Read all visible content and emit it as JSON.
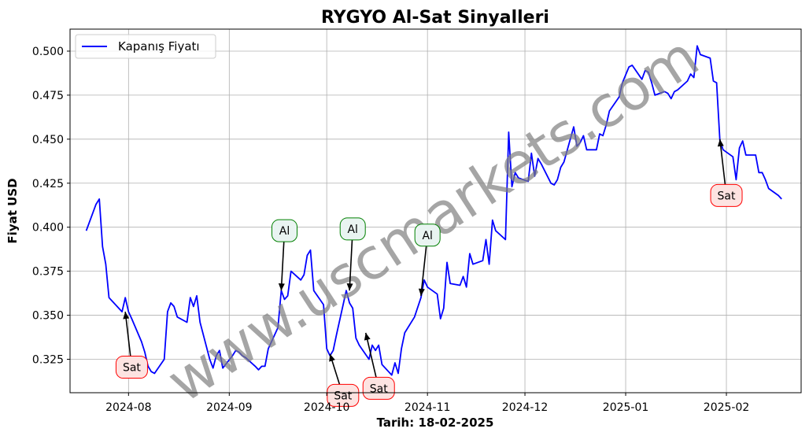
{
  "chart_data": {
    "type": "line",
    "title": "RYGYO Al-Sat Sinyalleri",
    "xlabel": "Tarih: 18-02-2025",
    "ylabel": "Fiyat USD",
    "xlim": [
      "2024-07-14",
      "2025-02-24"
    ],
    "ylim": [
      0.306,
      0.5125
    ],
    "grid": true,
    "legend_position": "top-left",
    "x_ticks": [
      "2024-08-01",
      "2024-09-01",
      "2024-10-01",
      "2024-11-01",
      "2024-12-01",
      "2025-01-01",
      "2025-02-01"
    ],
    "x_tick_labels": [
      "2024-08",
      "2024-09",
      "2024-10",
      "2024-11",
      "2024-12",
      "2025-01",
      "2025-02"
    ],
    "y_ticks": [
      0.325,
      0.35,
      0.375,
      0.4,
      0.425,
      0.45,
      0.475,
      0.5
    ],
    "y_tick_labels": [
      "0.325",
      "0.350",
      "0.375",
      "0.400",
      "0.425",
      "0.450",
      "0.475",
      "0.500"
    ],
    "series": [
      {
        "name": "Kapanış Fiyatı",
        "color": "#0000ff",
        "x": [
          "2024-07-19",
          "2024-07-22",
          "2024-07-23",
          "2024-07-24",
          "2024-07-25",
          "2024-07-26",
          "2024-07-29",
          "2024-07-30",
          "2024-07-31",
          "2024-08-01",
          "2024-08-02",
          "2024-08-05",
          "2024-08-06",
          "2024-08-07",
          "2024-08-08",
          "2024-08-09",
          "2024-08-12",
          "2024-08-13",
          "2024-08-14",
          "2024-08-15",
          "2024-08-16",
          "2024-08-19",
          "2024-08-20",
          "2024-08-21",
          "2024-08-22",
          "2024-08-23",
          "2024-08-26",
          "2024-08-27",
          "2024-08-28",
          "2024-08-29",
          "2024-08-30",
          "2024-09-02",
          "2024-09-03",
          "2024-09-04",
          "2024-09-05",
          "2024-09-06",
          "2024-09-09",
          "2024-09-10",
          "2024-09-11",
          "2024-09-12",
          "2024-09-13",
          "2024-09-16",
          "2024-09-17",
          "2024-09-18",
          "2024-09-19",
          "2024-09-20",
          "2024-09-23",
          "2024-09-24",
          "2024-09-25",
          "2024-09-26",
          "2024-09-27",
          "2024-09-30",
          "2024-10-01",
          "2024-10-02",
          "2024-10-03",
          "2024-10-04",
          "2024-10-07",
          "2024-10-08",
          "2024-10-09",
          "2024-10-10",
          "2024-10-11",
          "2024-10-14",
          "2024-10-15",
          "2024-10-16",
          "2024-10-17",
          "2024-10-18",
          "2024-10-21",
          "2024-10-22",
          "2024-10-23",
          "2024-10-24",
          "2024-10-25",
          "2024-10-28",
          "2024-10-30",
          "2024-10-31",
          "2024-11-01",
          "2024-11-04",
          "2024-11-05",
          "2024-11-06",
          "2024-11-07",
          "2024-11-08",
          "2024-11-11",
          "2024-11-12",
          "2024-11-13",
          "2024-11-14",
          "2024-11-15",
          "2024-11-18",
          "2024-11-19",
          "2024-11-20",
          "2024-11-21",
          "2024-11-22",
          "2024-11-25",
          "2024-11-26",
          "2024-11-27",
          "2024-11-28",
          "2024-11-29",
          "2024-12-02",
          "2024-12-03",
          "2024-12-04",
          "2024-12-05",
          "2024-12-06",
          "2024-12-09",
          "2024-12-10",
          "2024-12-11",
          "2024-12-12",
          "2024-12-13",
          "2024-12-16",
          "2024-12-17",
          "2024-12-18",
          "2024-12-19",
          "2024-12-20",
          "2024-12-23",
          "2024-12-24",
          "2024-12-25",
          "2024-12-26",
          "2024-12-27",
          "2024-12-30",
          "2024-12-31",
          "2025-01-02",
          "2025-01-03",
          "2025-01-06",
          "2025-01-07",
          "2025-01-08",
          "2025-01-09",
          "2025-01-10",
          "2025-01-13",
          "2025-01-14",
          "2025-01-15",
          "2025-01-16",
          "2025-01-17",
          "2025-01-20",
          "2025-01-21",
          "2025-01-22",
          "2025-01-23",
          "2025-01-24",
          "2025-01-27",
          "2025-01-28",
          "2025-01-29",
          "2025-01-30",
          "2025-01-31",
          "2025-02-03",
          "2025-02-04",
          "2025-02-05",
          "2025-02-06",
          "2025-02-07",
          "2025-02-10",
          "2025-02-11",
          "2025-02-12",
          "2025-02-13",
          "2025-02-14",
          "2025-02-17",
          "2025-02-18"
        ],
        "values": [
          0.398,
          0.413,
          0.416,
          0.389,
          0.379,
          0.36,
          0.354,
          0.352,
          0.36,
          0.352,
          0.348,
          0.335,
          0.329,
          0.321,
          0.318,
          0.317,
          0.325,
          0.352,
          0.357,
          0.355,
          0.349,
          0.346,
          0.36,
          0.355,
          0.361,
          0.346,
          0.325,
          0.32,
          0.327,
          0.33,
          0.32,
          0.327,
          0.33,
          0.329,
          0.327,
          0.326,
          0.321,
          0.319,
          0.321,
          0.321,
          0.331,
          0.343,
          0.364,
          0.359,
          0.361,
          0.375,
          0.37,
          0.373,
          0.384,
          0.387,
          0.364,
          0.356,
          0.331,
          0.327,
          0.33,
          0.339,
          0.364,
          0.357,
          0.354,
          0.337,
          0.333,
          0.325,
          0.333,
          0.33,
          0.333,
          0.322,
          0.316,
          0.323,
          0.317,
          0.331,
          0.34,
          0.349,
          0.36,
          0.37,
          0.366,
          0.362,
          0.348,
          0.354,
          0.38,
          0.368,
          0.367,
          0.372,
          0.366,
          0.385,
          0.379,
          0.381,
          0.393,
          0.379,
          0.404,
          0.398,
          0.393,
          0.454,
          0.423,
          0.431,
          0.428,
          0.426,
          0.442,
          0.429,
          0.439,
          0.436,
          0.425,
          0.424,
          0.427,
          0.434,
          0.437,
          0.457,
          0.446,
          0.448,
          0.452,
          0.444,
          0.444,
          0.453,
          0.452,
          0.458,
          0.466,
          0.474,
          0.482,
          0.491,
          0.492,
          0.484,
          0.489,
          0.488,
          0.482,
          0.475,
          0.477,
          0.476,
          0.473,
          0.477,
          0.478,
          0.483,
          0.487,
          0.485,
          0.503,
          0.498,
          0.496,
          0.483,
          0.482,
          0.449,
          0.444,
          0.44,
          0.427,
          0.445,
          0.449,
          0.441,
          0.441,
          0.431,
          0.431,
          0.427,
          0.422,
          0.418,
          0.416
        ]
      }
    ],
    "annotations": [
      {
        "text": "Sat",
        "type": "sell",
        "x": "2024-07-31",
        "y": 0.352,
        "text_x": "2024-08-02",
        "text_y": 0.3205
      },
      {
        "text": "Al",
        "type": "buy",
        "x": "2024-09-17",
        "y": 0.364,
        "text_x": "2024-09-18",
        "text_y": 0.398
      },
      {
        "text": "Sat",
        "type": "sell",
        "x": "2024-10-02",
        "y": 0.328,
        "text_x": "2024-10-06",
        "text_y": 0.3045
      },
      {
        "text": "Al",
        "type": "buy",
        "x": "2024-10-08",
        "y": 0.364,
        "text_x": "2024-10-09",
        "text_y": 0.399
      },
      {
        "text": "Sat",
        "type": "sell",
        "x": "2024-10-13",
        "y": 0.34,
        "text_x": "2024-10-17",
        "text_y": 0.3085
      },
      {
        "text": "Al",
        "type": "buy",
        "x": "2024-10-30",
        "y": 0.361,
        "text_x": "2024-11-01",
        "text_y": 0.3955
      },
      {
        "text": "Sat",
        "type": "sell",
        "x": "2025-01-30",
        "y": 0.45,
        "text_x": "2025-02-01",
        "text_y": 0.418
      }
    ],
    "watermark": "www.uscmarkets.com"
  }
}
